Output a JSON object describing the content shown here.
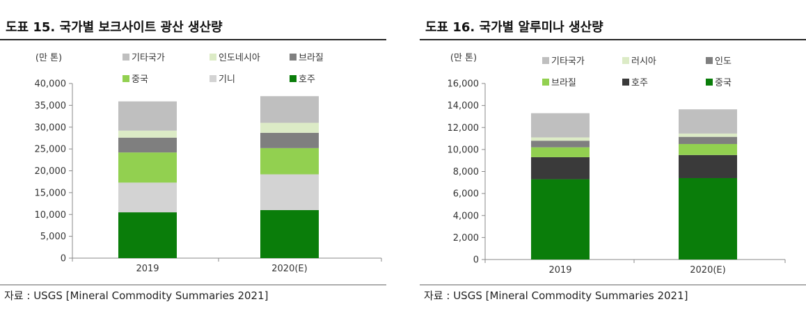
{
  "figures": [
    {
      "title": "도표 15. 국가별 보크사이트 광산 생산량",
      "source": "자료 : USGS [Mineral Commodity Summaries 2021]"
    },
    {
      "title": "도표 16. 국가별 알루미나 생산량",
      "source": "자료 : USGS [Mineral Commodity Summaries 2021]"
    }
  ],
  "chart_data": [
    {
      "type": "bar",
      "stacked": true,
      "unit_label": "(만 톤)",
      "categories": [
        "2019",
        "2020(E)"
      ],
      "ylim": [
        0,
        40000
      ],
      "yticks": [
        0,
        5000,
        10000,
        15000,
        20000,
        25000,
        30000,
        35000,
        40000
      ],
      "ytick_labels": [
        "0",
        "5,000",
        "10,000",
        "15,000",
        "20,000",
        "25,000",
        "30,000",
        "35,000",
        "40,000"
      ],
      "series": [
        {
          "name": "호주",
          "color": "#0a7d0a",
          "values": [
            10500,
            11000
          ]
        },
        {
          "name": "기니",
          "color": "#d3d3d3",
          "values": [
            6800,
            8200
          ]
        },
        {
          "name": "중국",
          "color": "#92d050",
          "values": [
            6900,
            6000
          ]
        },
        {
          "name": "브라질",
          "color": "#7f7f7f",
          "values": [
            3400,
            3500
          ]
        },
        {
          "name": "인도네시아",
          "color": "#dcebc6",
          "values": [
            1600,
            2300
          ]
        },
        {
          "name": "기타국가",
          "color": "#bfbfbf",
          "values": [
            6700,
            6100
          ]
        }
      ],
      "legend_order": [
        "기타국가",
        "인도네시아",
        "브라질",
        "중국",
        "기니",
        "호주"
      ],
      "legend_position": "top",
      "grid": false
    },
    {
      "type": "bar",
      "stacked": true,
      "unit_label": "(만 톤)",
      "categories": [
        "2019",
        "2020(E)"
      ],
      "ylim": [
        0,
        16000
      ],
      "yticks": [
        0,
        2000,
        4000,
        6000,
        8000,
        10000,
        12000,
        14000,
        16000
      ],
      "ytick_labels": [
        "0",
        "2,000",
        "4,000",
        "6,000",
        "8,000",
        "10,000",
        "12,000",
        "14,000",
        "16,000"
      ],
      "series": [
        {
          "name": "중국",
          "color": "#0a7d0a",
          "values": [
            7300,
            7400
          ]
        },
        {
          "name": "호주",
          "color": "#3a3a3a",
          "values": [
            2000,
            2100
          ]
        },
        {
          "name": "브라질",
          "color": "#92d050",
          "values": [
            900,
            1000
          ]
        },
        {
          "name": "인도",
          "color": "#7f7f7f",
          "values": [
            600,
            650
          ]
        },
        {
          "name": "러시아",
          "color": "#dcebc6",
          "values": [
            300,
            300
          ]
        },
        {
          "name": "기타국가",
          "color": "#bfbfbf",
          "values": [
            2200,
            2200
          ]
        }
      ],
      "legend_order": [
        "기타국가",
        "러시아",
        "인도",
        "브라질",
        "호주",
        "중국"
      ],
      "legend_position": "top",
      "grid": false
    }
  ]
}
